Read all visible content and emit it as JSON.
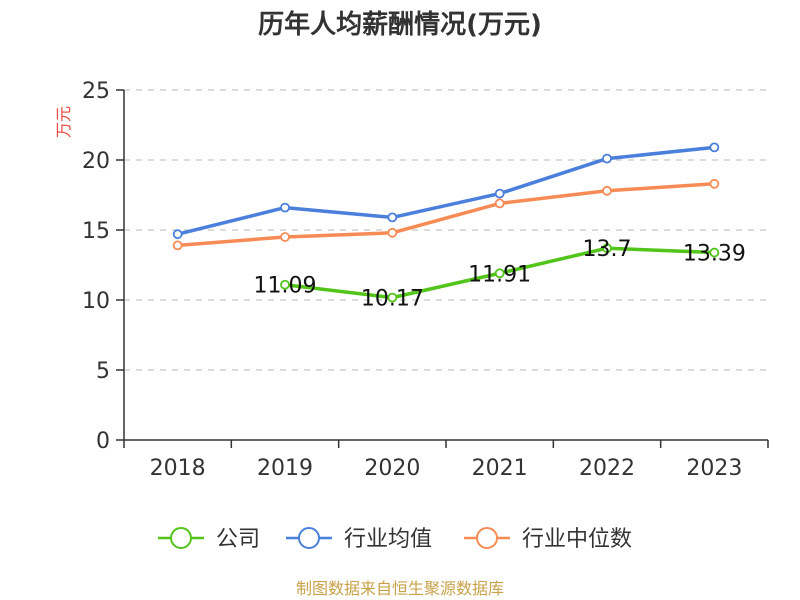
{
  "chart_data": {
    "type": "line",
    "title": "历年人均薪酬情况(万元)",
    "ylabel": "万元",
    "xlabel": "",
    "categories": [
      "2018",
      "2019",
      "2020",
      "2021",
      "2022",
      "2023"
    ],
    "ylim": [
      0,
      25
    ],
    "yticks": [
      0,
      5,
      10,
      15,
      20,
      25
    ],
    "grid": true,
    "legend_position": "bottom",
    "series": [
      {
        "name": "公司",
        "color": "#52c41a",
        "values": [
          null,
          11.09,
          10.17,
          11.91,
          13.7,
          13.39
        ],
        "data_labels": [
          "",
          "11.09",
          "10.17",
          "11.91",
          "13.7",
          "13.39"
        ]
      },
      {
        "name": "行业均值",
        "color": "#4a7fdb",
        "values": [
          14.7,
          16.6,
          15.9,
          17.6,
          20.1,
          20.9
        ],
        "data_labels": []
      },
      {
        "name": "行业中位数",
        "color": "#f78b55",
        "values": [
          13.9,
          14.5,
          14.8,
          16.9,
          17.8,
          18.3
        ],
        "data_labels": []
      }
    ]
  },
  "source": {
    "text": "制图数据来自恒生聚源数据库",
    "color": "#c8a24a"
  },
  "colors": {
    "axis": "#333333",
    "grid": "#c8c8c8",
    "ylabel": "#e8473f"
  }
}
